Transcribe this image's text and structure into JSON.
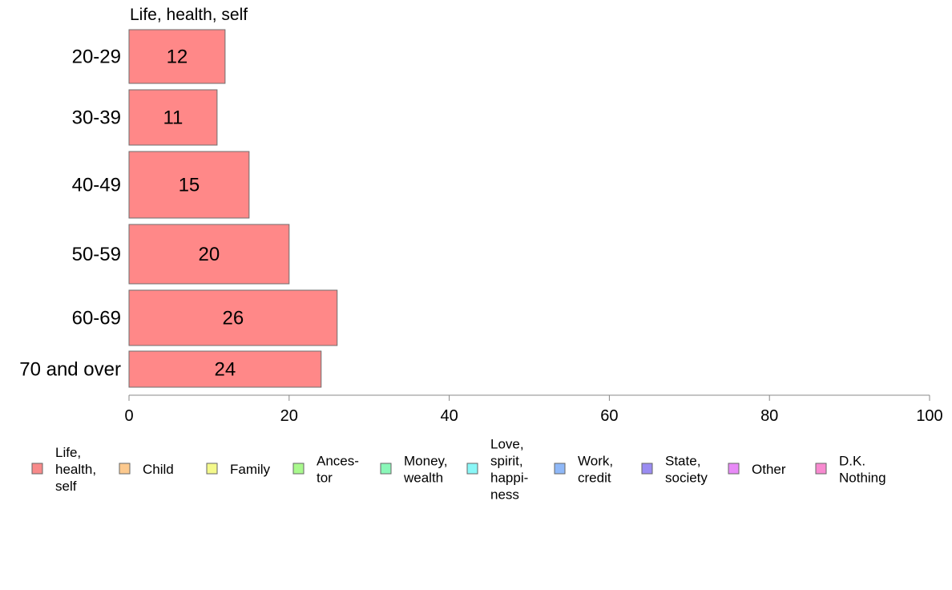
{
  "chart_data": {
    "type": "bar",
    "orientation": "horizontal",
    "title": "Life, health, self",
    "categories": [
      "20-29",
      "30-39",
      "40-49",
      "50-59",
      "60-69",
      "70 and over"
    ],
    "series": [
      {
        "name": "Life, health, self",
        "values": [
          12,
          11,
          15,
          20,
          26,
          24
        ],
        "color": "#ff8888"
      }
    ],
    "data_labels": [
      "12",
      "11",
      "15",
      "20",
      "26",
      "24"
    ],
    "xlim": [
      0,
      100
    ],
    "xticks": [
      0,
      20,
      40,
      60,
      80,
      100
    ],
    "xtick_labels": [
      "0",
      "20",
      "40",
      "60",
      "80",
      "100"
    ],
    "grid": false,
    "legend_position": "bottom",
    "legend": [
      {
        "lines": [
          "Life,",
          "health,",
          "self"
        ],
        "color": "#f88a8a"
      },
      {
        "lines": [
          "Child"
        ],
        "color": "#fcc98e"
      },
      {
        "lines": [
          "Family"
        ],
        "color": "#f4f98b"
      },
      {
        "lines": [
          "Ances-",
          "tor"
        ],
        "color": "#a9f98d"
      },
      {
        "lines": [
          "Money,",
          "wealth"
        ],
        "color": "#8af7b8"
      },
      {
        "lines": [
          "Love,",
          "spirit,",
          "happi-",
          "ness"
        ],
        "color": "#8af7f7"
      },
      {
        "lines": [
          "Work,",
          "credit"
        ],
        "color": "#8fb8f8"
      },
      {
        "lines": [
          "State,",
          "society"
        ],
        "color": "#9a8cf2"
      },
      {
        "lines": [
          "Other"
        ],
        "color": "#e88af7"
      },
      {
        "lines": [
          "D.K.",
          "Nothing"
        ],
        "color": "#f88ad0"
      }
    ]
  }
}
